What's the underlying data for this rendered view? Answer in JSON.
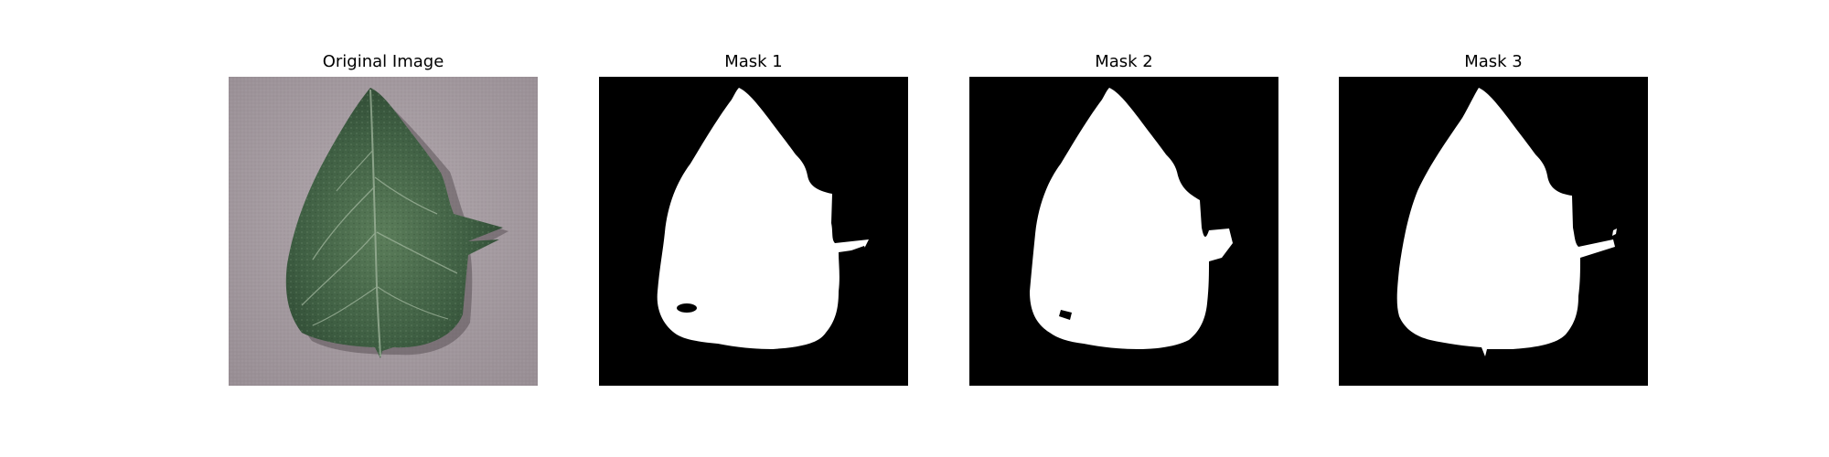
{
  "figure": {
    "panels": [
      {
        "title": "Original Image",
        "kind": "photo",
        "subject": "leaf"
      },
      {
        "title": "Mask 1",
        "kind": "mask"
      },
      {
        "title": "Mask 2",
        "kind": "mask"
      },
      {
        "title": "Mask 3",
        "kind": "mask"
      }
    ]
  },
  "colors": {
    "background": "#ffffff",
    "mask_background": "#000000",
    "mask_foreground": "#ffffff",
    "photo_background": "#a89ea4",
    "leaf_dark": "#2e4a33",
    "leaf_mid": "#4c6e4e",
    "leaf_light": "#6f8f6c",
    "vein": "#a7bba3"
  }
}
